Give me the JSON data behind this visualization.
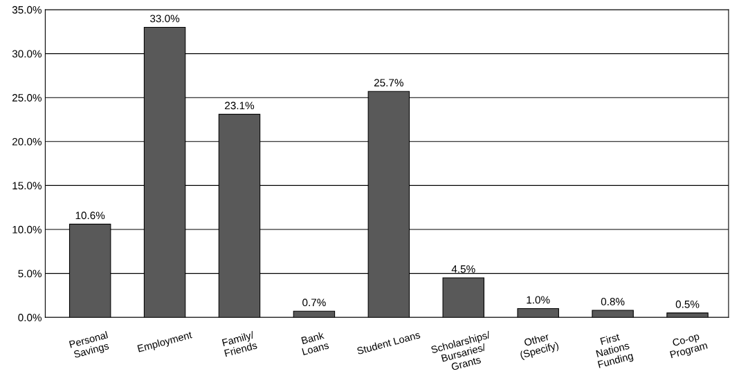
{
  "chart_data": {
    "type": "bar",
    "categories": [
      "Personal\nSavings",
      "Employment",
      "Family/\nFriends",
      "Bank\nLoans",
      "Student Loans",
      "Scholarships/\nBursaries/\nGrants",
      "Other\n(Specify)",
      "First\nNations\nFunding",
      "Co-op\nProgram"
    ],
    "values": [
      10.6,
      33.0,
      23.1,
      0.7,
      25.7,
      4.5,
      1.0,
      0.8,
      0.5
    ],
    "value_labels": [
      "10.6%",
      "33.0%",
      "23.1%",
      "0.7%",
      "25.7%",
      "4.5%",
      "1.0%",
      "0.8%",
      "0.5%"
    ],
    "color": "#595959",
    "ylim": [
      0,
      35
    ],
    "yticks": [
      {
        "value": 0,
        "label": "0.0%"
      },
      {
        "value": 5,
        "label": "5.0%"
      },
      {
        "value": 10,
        "label": "10.0%"
      },
      {
        "value": 15,
        "label": "15.0%"
      },
      {
        "value": 20,
        "label": "20.0%"
      },
      {
        "value": 25,
        "label": "25.0%"
      },
      {
        "value": 30,
        "label": "30.0%"
      },
      {
        "value": 35,
        "label": "35.0%"
      }
    ],
    "grid": "y"
  }
}
